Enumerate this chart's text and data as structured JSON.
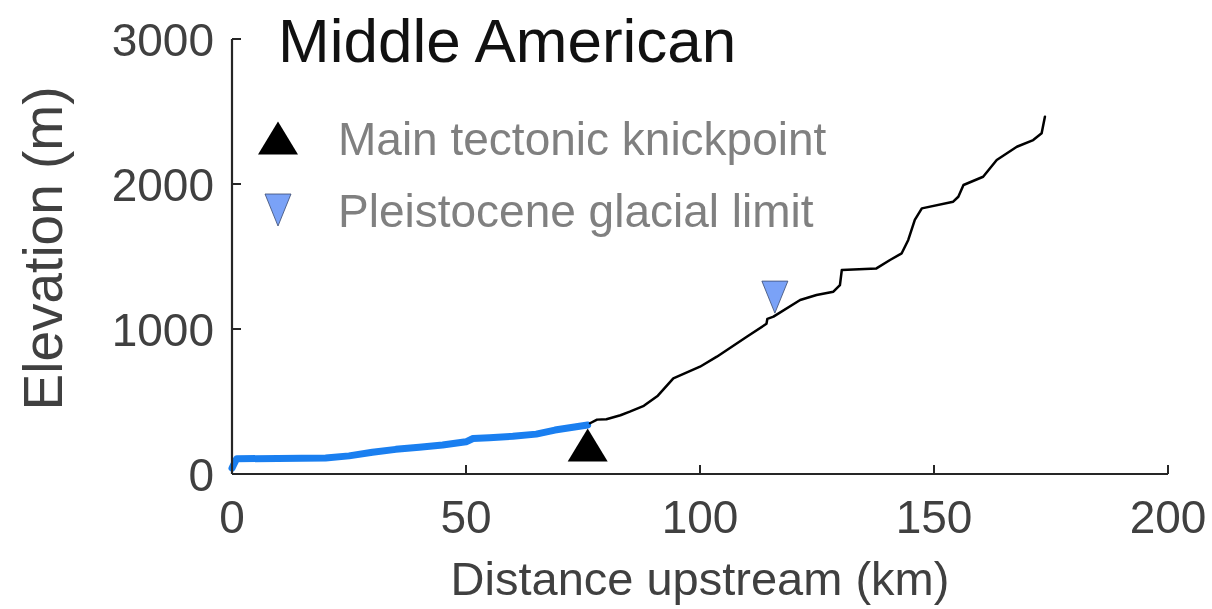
{
  "chart_data": {
    "type": "line",
    "title": "Middle American",
    "xlabel": "Distance upstream (km)",
    "ylabel": "Elevation (m)",
    "xlim": [
      0,
      200
    ],
    "ylim": [
      0,
      3000
    ],
    "xticks": [
      0,
      50,
      100,
      150,
      200
    ],
    "yticks": [
      0,
      1000,
      2000,
      3000
    ],
    "legend": "top left",
    "series": [
      {
        "color": "#1a7ff0",
        "x": [
          0,
          0.3,
          1,
          20,
          25,
          30,
          35,
          40,
          45,
          50,
          51.5,
          55,
          60,
          65,
          69,
          76
        ],
        "values": [
          40,
          60,
          105,
          110,
          125,
          150,
          170,
          185,
          200,
          222,
          245,
          250,
          260,
          275,
          303,
          338
        ]
      },
      {
        "color": "#000000",
        "x": [
          76.5,
          78,
          80,
          83,
          85,
          88,
          91,
          94.3,
          100,
          103.6,
          110,
          114.2,
          114.4,
          115.7,
          121.4,
          124.9,
          128.5,
          129.9,
          130.3,
          137.7,
          140.6,
          143.1,
          144.5,
          145.9,
          147.4,
          154.1,
          155.2,
          156.3,
          160.5,
          163.4,
          167.7,
          171.2,
          173,
          173.7
        ],
        "values": [
          350,
          375,
          378,
          405,
          430,
          470,
          540,
          660,
          740,
          809,
          947,
          1036,
          1070,
          1085,
          1200,
          1234,
          1257,
          1303,
          1407,
          1418,
          1476,
          1522,
          1614,
          1752,
          1832,
          1878,
          1912,
          1993,
          2050,
          2166,
          2257,
          2303,
          2350,
          2464
        ]
      },
      {
        "name": "Main tectonic knickpoint",
        "type": "scatter",
        "marker": "triangle",
        "color": "#000000",
        "x": [
          76
        ],
        "values": [
          200
        ]
      },
      {
        "name": "Pleistocene glacial limit",
        "type": "scatter",
        "marker": "triangle-down",
        "color": "#7aa2f7",
        "x": [
          116
        ],
        "values": [
          1220
        ]
      }
    ]
  }
}
